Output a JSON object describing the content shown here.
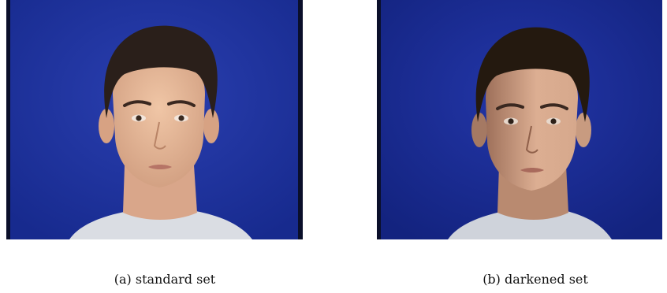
{
  "figure": {
    "panels": [
      {
        "caption": "(a) standard set",
        "lighting": "standard",
        "background_color": "#1c2f9a",
        "skin_color": "#e2b393"
      },
      {
        "caption": "(b) darkened set",
        "lighting": "darkened",
        "background_color": "#16299a",
        "skin_color": "#c7967a"
      }
    ]
  }
}
